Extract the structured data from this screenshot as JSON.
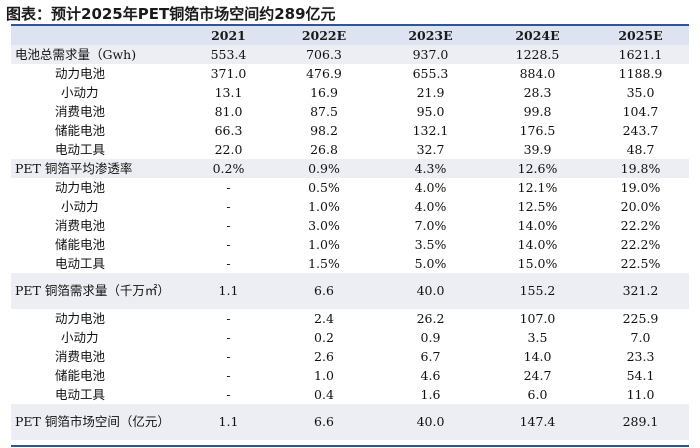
{
  "title": "图表：预计2025年PET铜箔市场空间约289亿元",
  "table": {
    "header": [
      "",
      "2021",
      "2022E",
      "2023E",
      "2024E",
      "2025E"
    ],
    "rows": [
      {
        "label": "电池总需求量（Gwh)",
        "values": [
          "553.4",
          "706.3",
          "937.0",
          "1228.5",
          "1621.1"
        ]
      },
      {
        "label": "动力电池",
        "values": [
          "371.0",
          "476.9",
          "655.3",
          "884.0",
          "1188.9"
        ]
      },
      {
        "label": "小动力",
        "values": [
          "13.1",
          "16.9",
          "21.9",
          "28.3",
          "35.0"
        ]
      },
      {
        "label": "消费电池",
        "values": [
          "81.0",
          "87.5",
          "95.0",
          "99.8",
          "104.7"
        ]
      },
      {
        "label": "储能电池",
        "values": [
          "66.3",
          "98.2",
          "132.1",
          "176.5",
          "243.7"
        ]
      },
      {
        "label": "电动工具",
        "values": [
          "22.0",
          "26.8",
          "32.7",
          "39.9",
          "48.7"
        ]
      },
      {
        "label": "PET 铜箔平均渗透率",
        "values": [
          "0.2%",
          "0.9%",
          "4.3%",
          "12.6%",
          "19.8%"
        ]
      },
      {
        "label": "动力电池",
        "values": [
          "-",
          "0.5%",
          "4.0%",
          "12.1%",
          "19.0%"
        ]
      },
      {
        "label": "小动力",
        "values": [
          "-",
          "1.0%",
          "4.0%",
          "12.5%",
          "20.0%"
        ]
      },
      {
        "label": "消费电池",
        "values": [
          "-",
          "3.0%",
          "7.0%",
          "14.0%",
          "22.2%"
        ]
      },
      {
        "label": "储能电池",
        "values": [
          "-",
          "1.0%",
          "3.5%",
          "14.0%",
          "22.2%"
        ]
      },
      {
        "label": "电动工具",
        "values": [
          "-",
          "1.5%",
          "5.0%",
          "15.0%",
          "22.5%"
        ]
      },
      {
        "label": "PET 铜箔需求量（千万㎡）",
        "values": [
          "1.1",
          "6.6",
          "40.0",
          "155.2",
          "321.2"
        ]
      },
      {
        "label": "动力电池",
        "values": [
          "-",
          "2.4",
          "26.2",
          "107.0",
          "225.9"
        ]
      },
      {
        "label": "小动力",
        "values": [
          "-",
          "0.2",
          "0.9",
          "3.5",
          "7.0"
        ]
      },
      {
        "label": "消费电池",
        "values": [
          "-",
          "2.6",
          "6.7",
          "14.0",
          "23.3"
        ]
      },
      {
        "label": "储能电池",
        "values": [
          "-",
          "1.0",
          "4.6",
          "24.7",
          "54.1"
        ]
      },
      {
        "label": "电动工具",
        "values": [
          "-",
          "0.4",
          "1.6",
          "6.0",
          "11.0"
        ]
      },
      {
        "label": "PET 铜箔市场空间（亿元）",
        "values": [
          "1.1",
          "6.6",
          "40.0",
          "147.4",
          "289.1"
        ]
      }
    ]
  },
  "colors": {
    "header_bg": "#dde3f0",
    "highlight_bg": "#eceef3",
    "rule": "#2f5597"
  }
}
